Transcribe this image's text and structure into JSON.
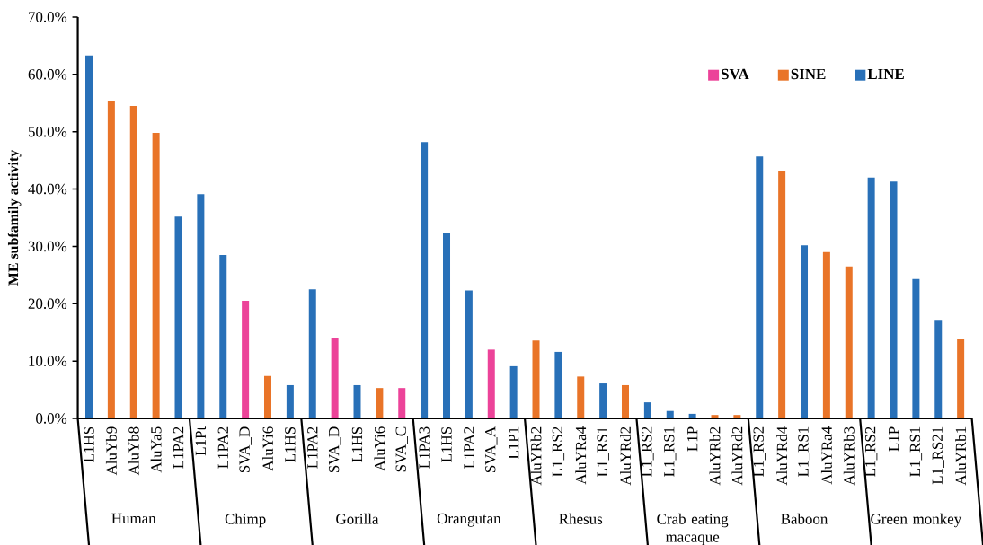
{
  "chart_data": {
    "type": "bar",
    "ylabel": "ME subfamily activity",
    "categories": [
      "L1HS",
      "AluYb9",
      "AluYb8",
      "AluYa5",
      "L1PA2",
      "L1Pt",
      "L1PA2",
      "SVA_D",
      "AluYi6",
      "L1HS",
      "L1PA2",
      "SVA_D",
      "L1HS",
      "AluYi6",
      "SVA_C",
      "L1PA3",
      "L1HS",
      "L1PA2",
      "SVA_A",
      "L1P1",
      "AluYRb2",
      "L1_RS2",
      "AluYRa4",
      "L1_RS1",
      "AluYRd2",
      "L1_RS2",
      "L1_RS1",
      "L1P",
      "AluYRb2",
      "AluYRd2",
      "L1_RS2",
      "AluYRd4",
      "L1_RS1",
      "AluYRa4",
      "AluYRb3",
      "L1_RS2",
      "L1P",
      "L1_RS1",
      "L1_RS21",
      "AluYRb1"
    ],
    "series": [
      {
        "name": "SVA",
        "color": "#ec4399",
        "values": [
          null,
          null,
          null,
          null,
          null,
          null,
          null,
          20.5,
          null,
          null,
          null,
          14.1,
          null,
          null,
          5.3,
          null,
          null,
          null,
          12.0,
          null,
          null,
          null,
          null,
          null,
          null,
          null,
          null,
          null,
          null,
          null,
          null,
          null,
          null,
          null,
          null,
          null,
          null,
          null,
          null,
          null
        ]
      },
      {
        "name": "SINE",
        "color": "#e97428",
        "values": [
          null,
          55.4,
          54.5,
          49.8,
          null,
          null,
          null,
          null,
          7.4,
          null,
          null,
          null,
          null,
          5.3,
          null,
          null,
          null,
          null,
          null,
          null,
          13.6,
          null,
          7.3,
          null,
          5.8,
          null,
          null,
          null,
          0.6,
          0.6,
          null,
          43.2,
          null,
          29.0,
          26.5,
          null,
          null,
          null,
          null,
          13.8
        ]
      },
      {
        "name": "LINE",
        "color": "#2870b8",
        "values": [
          63.3,
          null,
          null,
          null,
          35.2,
          39.1,
          28.5,
          null,
          null,
          5.8,
          22.5,
          null,
          5.8,
          null,
          null,
          48.2,
          32.3,
          22.3,
          null,
          9.1,
          null,
          11.6,
          null,
          6.1,
          null,
          2.8,
          1.3,
          0.8,
          null,
          null,
          45.7,
          null,
          30.2,
          null,
          null,
          42.0,
          41.3,
          24.3,
          17.2,
          null
        ]
      }
    ],
    "annotations": [
      "Human",
      "Chimp",
      "Gorilla",
      "Orangutan",
      "Rhesus",
      "Crab eating macaque",
      "Baboon",
      "Green monkey"
    ],
    "ylim": [
      0,
      70
    ],
    "yticks": [
      {
        "value": 0,
        "label": "0.0%"
      },
      {
        "value": 10,
        "label": "10.0%"
      },
      {
        "value": 20,
        "label": "20.0%"
      },
      {
        "value": 30,
        "label": "30.0%"
      },
      {
        "value": 40,
        "label": "40.0%"
      },
      {
        "value": 50,
        "label": "50.0%"
      },
      {
        "value": 60,
        "label": "60.0%"
      },
      {
        "value": 70,
        "label": "70.0%"
      }
    ],
    "legend": "top right"
  }
}
